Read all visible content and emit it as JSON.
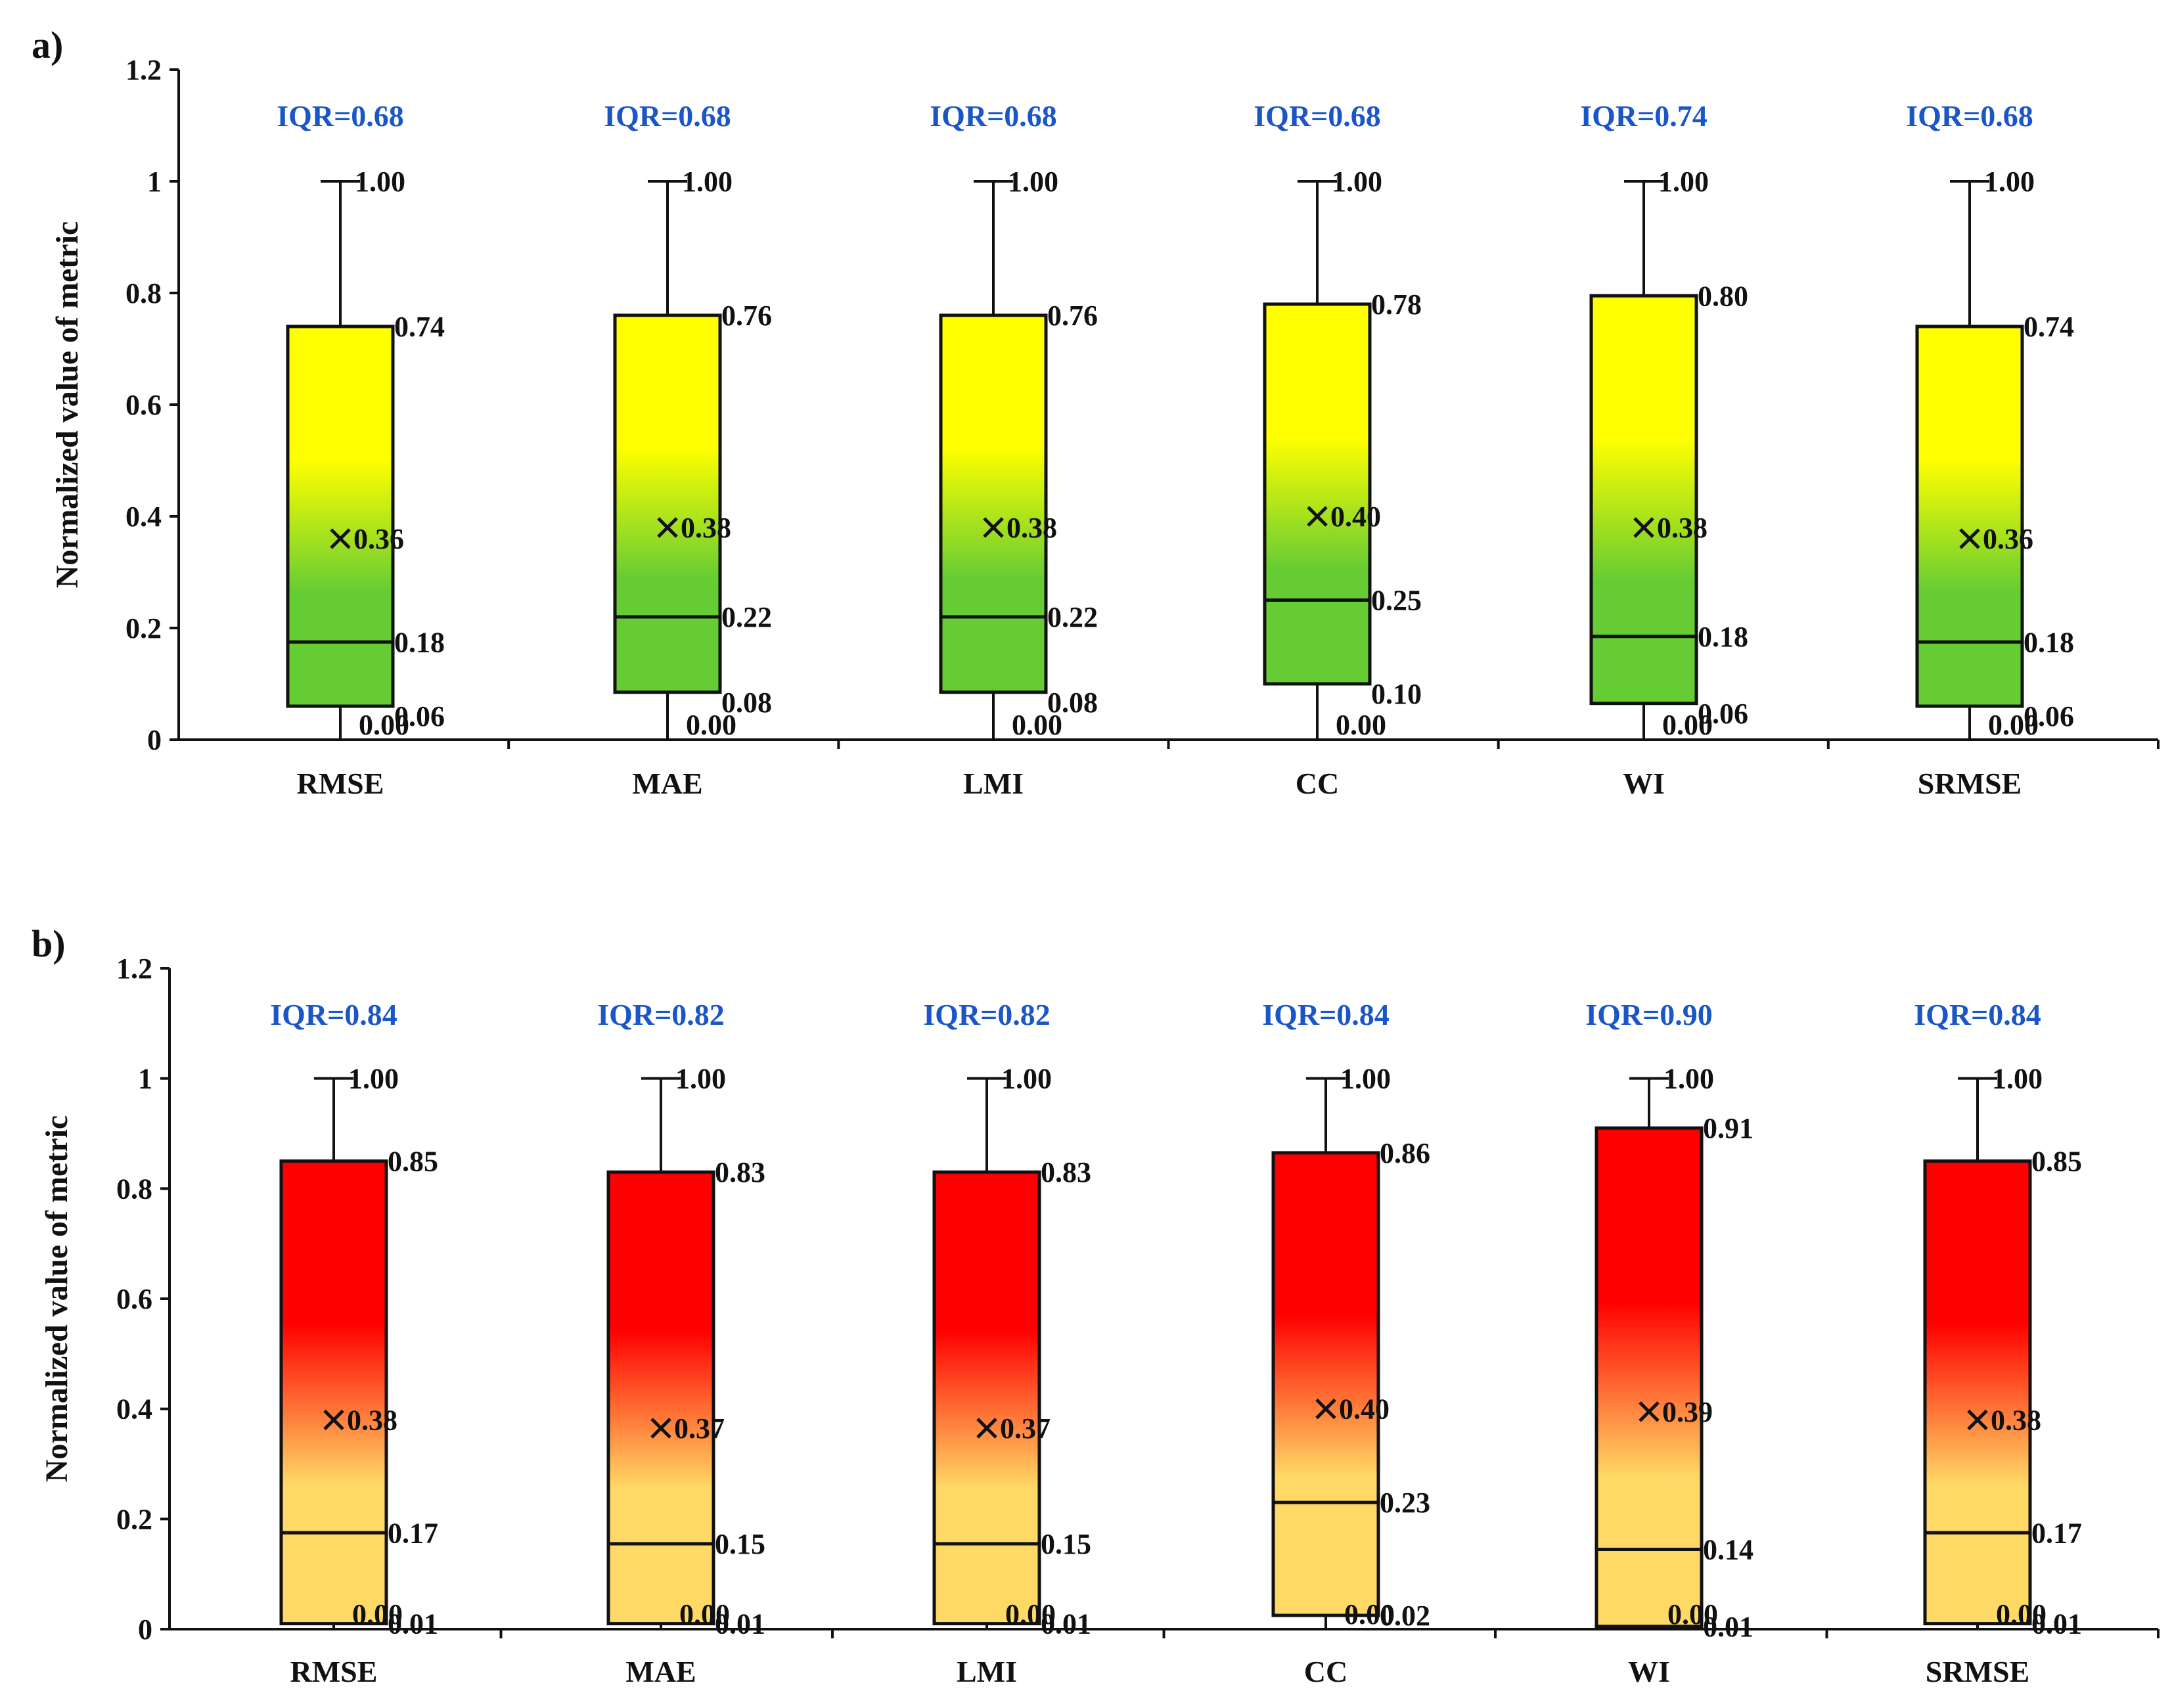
{
  "chart_data": [
    {
      "type": "boxplot",
      "panel": "a)",
      "ylabel": "Normalized value of  metric",
      "ylim": [
        0,
        1.2
      ],
      "yticks": [
        "0",
        "0.2",
        "0.4",
        "0.6",
        "0.8",
        "1",
        "1.2"
      ],
      "categories": [
        "RMSE",
        "MAE",
        "LMI",
        "CC",
        "WI",
        "SRMSE"
      ],
      "gradient": [
        "#ffff00",
        "#66cc33"
      ],
      "boxes": [
        {
          "category": "RMSE",
          "min": 0.0,
          "q1": 0.06,
          "median": 0.175,
          "mean": 0.36,
          "q3": 0.74,
          "max": 1.0,
          "labels": {
            "min": "0.00",
            "q1": "0.06",
            "median": "0.18",
            "mean": "0.36",
            "q3": "0.74",
            "max": "1.00"
          },
          "iqr": "IQR=0.68"
        },
        {
          "category": "MAE",
          "min": 0.0,
          "q1": 0.085,
          "median": 0.22,
          "mean": 0.38,
          "q3": 0.76,
          "max": 1.0,
          "labels": {
            "min": "0.00",
            "q1": "0.08",
            "median": "0.22",
            "mean": "0.38",
            "q3": "0.76",
            "max": "1.00"
          },
          "iqr": "IQR=0.68"
        },
        {
          "category": "LMI",
          "min": 0.0,
          "q1": 0.085,
          "median": 0.22,
          "mean": 0.38,
          "q3": 0.76,
          "max": 1.0,
          "labels": {
            "min": "0.00",
            "q1": "0.08",
            "median": "0.22",
            "mean": "0.38",
            "q3": "0.76",
            "max": "1.00"
          },
          "iqr": "IQR=0.68"
        },
        {
          "category": "CC",
          "min": 0.0,
          "q1": 0.1,
          "median": 0.25,
          "mean": 0.4,
          "q3": 0.78,
          "max": 1.0,
          "labels": {
            "min": "0.00",
            "q1": "0.10",
            "median": "0.25",
            "mean": "0.40",
            "q3": "0.78",
            "max": "1.00"
          },
          "iqr": "IQR=0.68"
        },
        {
          "category": "WI",
          "min": 0.0,
          "q1": 0.065,
          "median": 0.185,
          "mean": 0.38,
          "q3": 0.795,
          "max": 1.0,
          "labels": {
            "min": "0.00",
            "q1": "0.06",
            "median": "0.18",
            "mean": "0.38",
            "q3": "0.80",
            "max": "1.00"
          },
          "iqr": "IQR=0.74"
        },
        {
          "category": "SRMSE",
          "min": 0.0,
          "q1": 0.06,
          "median": 0.175,
          "mean": 0.36,
          "q3": 0.74,
          "max": 1.0,
          "labels": {
            "min": "0.00",
            "q1": "0.06",
            "median": "0.18",
            "mean": "0.36",
            "q3": "0.74",
            "max": "1.00"
          },
          "iqr": "IQR=0.68"
        }
      ]
    },
    {
      "type": "boxplot",
      "panel": "b)",
      "ylabel": "Normalized value of  metric",
      "ylim": [
        0,
        1.2
      ],
      "yticks": [
        "0",
        "0.2",
        "0.4",
        "0.6",
        "0.8",
        "1",
        "1.2"
      ],
      "categories": [
        "RMSE",
        "MAE",
        "LMI",
        "CC",
        "WI",
        "SRMSE"
      ],
      "gradient": [
        "#ff0000",
        "#ffd966"
      ],
      "boxes": [
        {
          "category": "RMSE",
          "min": 0.0,
          "q1": 0.01,
          "median": 0.175,
          "mean": 0.38,
          "q3": 0.85,
          "max": 1.0,
          "labels": {
            "min": "0.00",
            "q1": "0.01",
            "median": "0.17",
            "mean": "0.38",
            "q3": "0.85",
            "max": "1.00"
          },
          "iqr": "IQR=0.84"
        },
        {
          "category": "MAE",
          "min": 0.0,
          "q1": 0.01,
          "median": 0.155,
          "mean": 0.365,
          "q3": 0.83,
          "max": 1.0,
          "labels": {
            "min": "0.00",
            "q1": "0.01",
            "median": "0.15",
            "mean": "0.37",
            "q3": "0.83",
            "max": "1.00"
          },
          "iqr": "IQR=0.82"
        },
        {
          "category": "LMI",
          "min": 0.0,
          "q1": 0.01,
          "median": 0.155,
          "mean": 0.365,
          "q3": 0.83,
          "max": 1.0,
          "labels": {
            "min": "0.00",
            "q1": "0.01",
            "median": "0.15",
            "mean": "0.37",
            "q3": "0.83",
            "max": "1.00"
          },
          "iqr": "IQR=0.82"
        },
        {
          "category": "CC",
          "min": 0.0,
          "q1": 0.025,
          "median": 0.23,
          "mean": 0.4,
          "q3": 0.865,
          "max": 1.0,
          "labels": {
            "min": "0.00",
            "q1": "0.02",
            "median": "0.23",
            "mean": "0.40",
            "q3": "0.86",
            "max": "1.00"
          },
          "iqr": "IQR=0.84"
        },
        {
          "category": "WI",
          "min": 0.0,
          "q1": 0.005,
          "median": 0.145,
          "mean": 0.395,
          "q3": 0.91,
          "max": 1.0,
          "labels": {
            "min": "0.00",
            "q1": "0.01",
            "median": "0.14",
            "mean": "0.39",
            "q3": "0.91",
            "max": "1.00"
          },
          "iqr": "IQR=0.90"
        },
        {
          "category": "SRMSE",
          "min": 0.0,
          "q1": 0.01,
          "median": 0.175,
          "mean": 0.38,
          "q3": 0.85,
          "max": 1.0,
          "labels": {
            "min": "0.00",
            "q1": "0.01",
            "median": "0.17",
            "mean": "0.38",
            "q3": "0.85",
            "max": "1.00"
          },
          "iqr": "IQR=0.84"
        }
      ]
    }
  ]
}
